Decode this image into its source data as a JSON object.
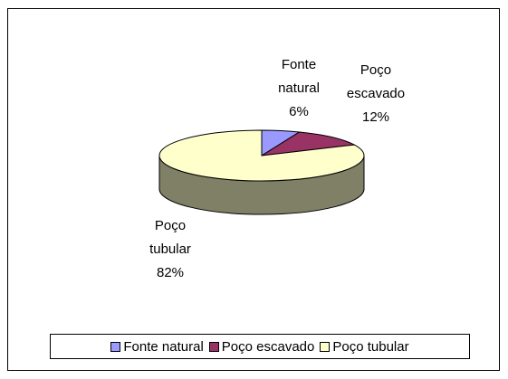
{
  "chart_data": {
    "type": "pie",
    "categories": [
      "Fonte natural",
      "Poço escavado",
      "Poço tubular"
    ],
    "values": [
      6,
      12,
      82
    ],
    "value_labels": [
      "6%",
      "12%",
      "82%"
    ],
    "colors": [
      "#9999ff",
      "#993366",
      "#ffffcc"
    ],
    "legend": "bottom"
  }
}
